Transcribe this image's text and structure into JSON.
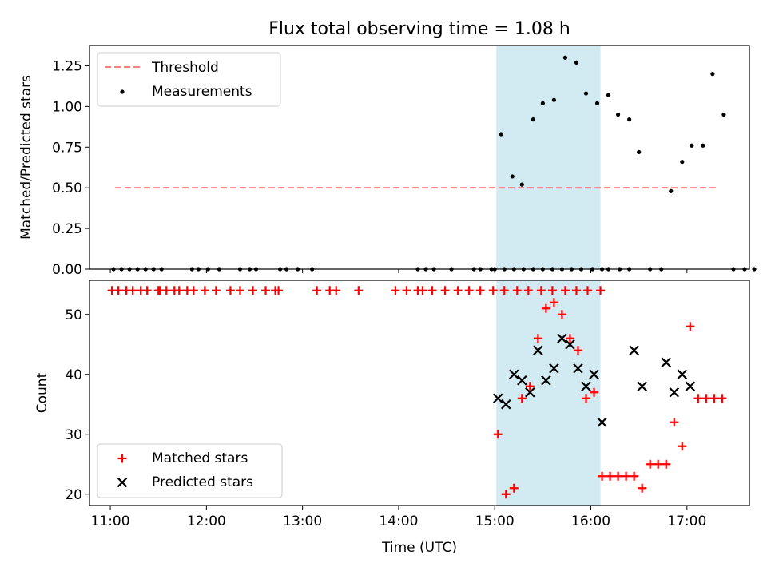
{
  "title": "Flux total observing time = 1.08 h",
  "colors": {
    "threshold": "#ff7f7f",
    "measurement": "#000000",
    "matched": "#ff0000",
    "predicted": "#000000",
    "span": "#add8e6"
  },
  "chart_data": [
    {
      "type": "scatter",
      "ylabel": "Matched/Predicted stars",
      "xlim": [
        "10:47",
        "17:39"
      ],
      "ylim": [
        0,
        1.375
      ],
      "yticks": [
        "0.00",
        "0.25",
        "0.50",
        "0.75",
        "1.00",
        "1.25"
      ],
      "grid": false,
      "legend": {
        "position": "upper left",
        "entries": [
          "Threshold",
          "Measurements"
        ]
      },
      "highlight_span": {
        "start": "15:01",
        "end": "16:06"
      },
      "threshold": {
        "name": "Threshold",
        "value": 0.5,
        "x_start": "11:03",
        "x_end": "17:18"
      },
      "series": [
        {
          "name": "Measurements",
          "points": [
            [
              "11:02",
              0
            ],
            [
              "11:07",
              0
            ],
            [
              "11:12",
              0
            ],
            [
              "11:17",
              0
            ],
            [
              "11:22",
              0
            ],
            [
              "11:27",
              0
            ],
            [
              "11:32",
              0
            ],
            [
              "11:51",
              0
            ],
            [
              "11:55",
              0
            ],
            [
              "12:01",
              0
            ],
            [
              "12:08",
              0
            ],
            [
              "12:21",
              0
            ],
            [
              "12:27",
              0
            ],
            [
              "12:31",
              0
            ],
            [
              "12:46",
              0
            ],
            [
              "12:50",
              0
            ],
            [
              "12:57",
              0
            ],
            [
              "13:06",
              0
            ],
            [
              "14:12",
              0
            ],
            [
              "14:17",
              0
            ],
            [
              "14:22",
              0
            ],
            [
              "14:33",
              0
            ],
            [
              "14:47",
              0
            ],
            [
              "14:51",
              0
            ],
            [
              "14:58",
              0
            ],
            [
              "15:00",
              0
            ],
            [
              "15:06",
              0
            ],
            [
              "15:12",
              0
            ],
            [
              "15:18",
              0
            ],
            [
              "15:24",
              0
            ],
            [
              "15:30",
              0
            ],
            [
              "15:36",
              0
            ],
            [
              "15:42",
              0
            ],
            [
              "15:48",
              0
            ],
            [
              "15:54",
              0
            ],
            [
              "16:01",
              0
            ],
            [
              "16:07",
              0
            ],
            [
              "15:04",
              0.83
            ],
            [
              "15:11",
              0.57
            ],
            [
              "15:17",
              0.52
            ],
            [
              "15:24",
              0.92
            ],
            [
              "15:30",
              1.02
            ],
            [
              "15:37",
              1.04
            ],
            [
              "15:44",
              1.3
            ],
            [
              "15:51",
              1.27
            ],
            [
              "15:57",
              1.08
            ],
            [
              "16:04",
              1.02
            ],
            [
              "16:11",
              1.07
            ],
            [
              "16:17",
              0.95
            ],
            [
              "16:24",
              0.92
            ],
            [
              "16:30",
              0.72
            ],
            [
              "16:11",
              0
            ],
            [
              "16:18",
              0
            ],
            [
              "16:24",
              0
            ],
            [
              "16:37",
              0
            ],
            [
              "16:44",
              0
            ],
            [
              "16:50",
              0.48
            ],
            [
              "16:57",
              0.66
            ],
            [
              "17:03",
              0.76
            ],
            [
              "17:10",
              0.76
            ],
            [
              "17:16",
              1.2
            ],
            [
              "17:23",
              0.95
            ],
            [
              "17:29",
              0
            ],
            [
              "17:36",
              0
            ],
            [
              "17:42",
              0
            ]
          ]
        }
      ]
    },
    {
      "type": "scatter",
      "xlabel": "Time (UTC)",
      "ylabel": "Count",
      "xlim": [
        "10:47",
        "17:39"
      ],
      "ylim": [
        18.1,
        55.7
      ],
      "xticks": [
        "11:00",
        "12:00",
        "13:00",
        "14:00",
        "15:00",
        "16:00",
        "17:00"
      ],
      "yticks": [
        "20",
        "30",
        "40",
        "50"
      ],
      "grid": false,
      "legend": {
        "position": "lower left",
        "entries": [
          "Matched stars",
          "Predicted stars"
        ]
      },
      "highlight_span": {
        "start": "15:01",
        "end": "16:06"
      },
      "series": [
        {
          "name": "Matched stars",
          "points": [
            [
              "11:01",
              54
            ],
            [
              "11:05",
              54
            ],
            [
              "11:10",
              54
            ],
            [
              "11:14",
              54
            ],
            [
              "11:19",
              54
            ],
            [
              "11:23",
              54
            ],
            [
              "11:30",
              54
            ],
            [
              "11:31",
              54
            ],
            [
              "11:35",
              54
            ],
            [
              "11:40",
              54
            ],
            [
              "11:43",
              54
            ],
            [
              "11:48",
              54
            ],
            [
              "11:52",
              54
            ],
            [
              "11:59",
              54
            ],
            [
              "12:06",
              54
            ],
            [
              "12:15",
              54
            ],
            [
              "12:21",
              54
            ],
            [
              "12:29",
              54
            ],
            [
              "12:37",
              54
            ],
            [
              "12:43",
              54
            ],
            [
              "12:45",
              54
            ],
            [
              "13:09",
              54
            ],
            [
              "13:17",
              54
            ],
            [
              "13:21",
              54
            ],
            [
              "13:35",
              54
            ],
            [
              "13:58",
              54
            ],
            [
              "14:05",
              54
            ],
            [
              "14:12",
              54
            ],
            [
              "14:15",
              54
            ],
            [
              "14:21",
              54
            ],
            [
              "14:29",
              54
            ],
            [
              "14:37",
              54
            ],
            [
              "14:44",
              54
            ],
            [
              "14:51",
              54
            ],
            [
              "14:59",
              54
            ],
            [
              "15:06",
              54
            ],
            [
              "15:14",
              54
            ],
            [
              "15:21",
              54
            ],
            [
              "15:29",
              54
            ],
            [
              "15:36",
              54
            ],
            [
              "15:44",
              54
            ],
            [
              "15:51",
              54
            ],
            [
              "15:58",
              54
            ],
            [
              "16:06",
              54
            ],
            [
              "15:02",
              30
            ],
            [
              "15:07",
              20
            ],
            [
              "15:12",
              21
            ],
            [
              "15:17",
              36
            ],
            [
              "15:22",
              38
            ],
            [
              "15:27",
              46
            ],
            [
              "15:32",
              51
            ],
            [
              "15:37",
              52
            ],
            [
              "15:42",
              50
            ],
            [
              "15:47",
              46
            ],
            [
              "15:52",
              44
            ],
            [
              "15:57",
              36
            ],
            [
              "16:02",
              37
            ],
            [
              "16:07",
              23
            ],
            [
              "16:12",
              23
            ],
            [
              "16:17",
              23
            ],
            [
              "16:22",
              23
            ],
            [
              "16:27",
              23
            ],
            [
              "16:32",
              21
            ],
            [
              "16:37",
              25
            ],
            [
              "16:42",
              25
            ],
            [
              "16:47",
              25
            ],
            [
              "16:52",
              32
            ],
            [
              "16:57",
              28
            ],
            [
              "17:02",
              48
            ],
            [
              "17:07",
              36
            ],
            [
              "17:12",
              36
            ],
            [
              "17:17",
              36
            ],
            [
              "17:22",
              36
            ]
          ]
        },
        {
          "name": "Predicted stars",
          "points": [
            [
              "15:02",
              36
            ],
            [
              "15:07",
              35
            ],
            [
              "15:12",
              40
            ],
            [
              "15:17",
              39
            ],
            [
              "15:22",
              37
            ],
            [
              "15:27",
              44
            ],
            [
              "15:32",
              39
            ],
            [
              "15:37",
              41
            ],
            [
              "15:42",
              46
            ],
            [
              "15:47",
              45
            ],
            [
              "15:52",
              41
            ],
            [
              "15:57",
              38
            ],
            [
              "16:02",
              40
            ],
            [
              "16:07",
              32
            ],
            [
              "16:27",
              44
            ],
            [
              "16:32",
              38
            ],
            [
              "16:47",
              42
            ],
            [
              "16:52",
              37
            ],
            [
              "16:57",
              40
            ],
            [
              "17:02",
              38
            ]
          ]
        }
      ]
    }
  ]
}
